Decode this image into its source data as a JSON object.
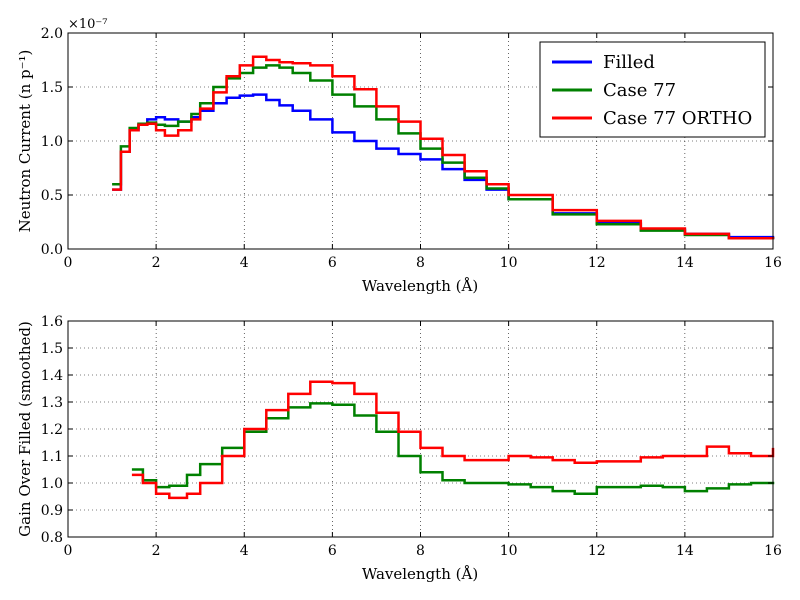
{
  "colors": {
    "blue": "#0000ff",
    "green": "#008000",
    "red": "#ff0000"
  },
  "chart_data": [
    {
      "type": "line",
      "xlabel": "Wavelength (Å)",
      "ylabel": "Neutron Current (n p⁻¹)",
      "y_exponent": "×10⁻⁷",
      "xlim": [
        0,
        16
      ],
      "ylim": [
        0,
        2.0
      ],
      "xticks": [
        0,
        2,
        4,
        6,
        8,
        10,
        12,
        14,
        16
      ],
      "yticks": [
        0.0,
        0.5,
        1.0,
        1.5,
        2.0
      ],
      "grid": true,
      "legend_position": "top-right",
      "series": [
        {
          "name": "Filled",
          "color": "#0000ff",
          "x": [
            1.0,
            1.2,
            1.4,
            1.6,
            1.8,
            2.0,
            2.2,
            2.5,
            2.8,
            3.0,
            3.3,
            3.6,
            3.9,
            4.2,
            4.5,
            4.8,
            5.1,
            5.5,
            6.0,
            6.5,
            7.0,
            7.5,
            8.0,
            8.5,
            9.0,
            9.5,
            10.0,
            11.0,
            12.0,
            13.0,
            14.0,
            15.0,
            16.0
          ],
          "y": [
            0.55,
            0.9,
            1.1,
            1.15,
            1.2,
            1.22,
            1.2,
            1.18,
            1.22,
            1.28,
            1.35,
            1.4,
            1.42,
            1.43,
            1.38,
            1.33,
            1.28,
            1.2,
            1.08,
            1.0,
            0.93,
            0.88,
            0.83,
            0.74,
            0.64,
            0.55,
            0.46,
            0.33,
            0.24,
            0.18,
            0.14,
            0.11,
            0.09
          ]
        },
        {
          "name": "Case 77",
          "color": "#008000",
          "x": [
            1.0,
            1.2,
            1.4,
            1.6,
            1.8,
            2.0,
            2.2,
            2.5,
            2.8,
            3.0,
            3.3,
            3.6,
            3.9,
            4.2,
            4.5,
            4.8,
            5.1,
            5.5,
            6.0,
            6.5,
            7.0,
            7.5,
            8.0,
            8.5,
            9.0,
            9.5,
            10.0,
            11.0,
            12.0,
            13.0,
            14.0,
            15.0,
            16.0
          ],
          "y": [
            0.6,
            0.95,
            1.12,
            1.16,
            1.17,
            1.15,
            1.14,
            1.18,
            1.25,
            1.35,
            1.5,
            1.58,
            1.63,
            1.68,
            1.7,
            1.68,
            1.63,
            1.56,
            1.43,
            1.32,
            1.2,
            1.07,
            0.93,
            0.8,
            0.66,
            0.56,
            0.46,
            0.32,
            0.23,
            0.17,
            0.13,
            0.1,
            0.09
          ]
        },
        {
          "name": "Case 77 ORTHO",
          "color": "#ff0000",
          "x": [
            1.0,
            1.2,
            1.4,
            1.6,
            1.8,
            2.0,
            2.2,
            2.5,
            2.8,
            3.0,
            3.3,
            3.6,
            3.9,
            4.2,
            4.5,
            4.8,
            5.1,
            5.5,
            6.0,
            6.5,
            7.0,
            7.5,
            8.0,
            8.5,
            9.0,
            9.5,
            10.0,
            11.0,
            12.0,
            13.0,
            14.0,
            15.0,
            16.0
          ],
          "y": [
            0.55,
            0.9,
            1.1,
            1.15,
            1.16,
            1.1,
            1.05,
            1.1,
            1.2,
            1.3,
            1.45,
            1.6,
            1.7,
            1.78,
            1.75,
            1.73,
            1.72,
            1.7,
            1.6,
            1.48,
            1.32,
            1.18,
            1.02,
            0.87,
            0.72,
            0.6,
            0.5,
            0.36,
            0.26,
            0.19,
            0.14,
            0.1,
            0.09
          ]
        }
      ]
    },
    {
      "type": "line",
      "xlabel": "Wavelength (Å)",
      "ylabel": "Gain Over Filled (smoothed)",
      "xlim": [
        0,
        16
      ],
      "ylim": [
        0.8,
        1.6
      ],
      "xticks": [
        0,
        2,
        4,
        6,
        8,
        10,
        12,
        14,
        16
      ],
      "yticks": [
        0.8,
        0.9,
        1.0,
        1.1,
        1.2,
        1.3,
        1.4,
        1.5,
        1.6
      ],
      "grid": true,
      "series": [
        {
          "name": "Case 77",
          "color": "#008000",
          "x": [
            1.45,
            1.7,
            2.0,
            2.3,
            2.7,
            3.0,
            3.5,
            4.0,
            4.5,
            5.0,
            5.5,
            6.0,
            6.5,
            7.0,
            7.5,
            8.0,
            8.5,
            9.0,
            10.0,
            10.5,
            11.0,
            11.5,
            12.0,
            13.0,
            13.5,
            14.0,
            14.5,
            15.0,
            15.5,
            16.0
          ],
          "y": [
            1.05,
            1.01,
            0.985,
            0.99,
            1.03,
            1.07,
            1.13,
            1.19,
            1.24,
            1.28,
            1.295,
            1.29,
            1.25,
            1.19,
            1.1,
            1.04,
            1.01,
            1.0,
            0.995,
            0.985,
            0.97,
            0.96,
            0.985,
            0.99,
            0.985,
            0.97,
            0.98,
            0.995,
            1.0,
            1.005
          ]
        },
        {
          "name": "Case 77 ORTHO",
          "color": "#ff0000",
          "x": [
            1.45,
            1.7,
            2.0,
            2.3,
            2.7,
            3.0,
            3.5,
            4.0,
            4.5,
            5.0,
            5.5,
            6.0,
            6.5,
            7.0,
            7.5,
            8.0,
            8.5,
            9.0,
            10.0,
            10.5,
            11.0,
            11.5,
            12.0,
            13.0,
            13.5,
            14.0,
            14.5,
            15.0,
            15.5,
            16.0
          ],
          "y": [
            1.03,
            1.0,
            0.96,
            0.945,
            0.96,
            1.0,
            1.1,
            1.2,
            1.27,
            1.33,
            1.375,
            1.37,
            1.33,
            1.26,
            1.19,
            1.13,
            1.1,
            1.085,
            1.1,
            1.095,
            1.085,
            1.075,
            1.08,
            1.095,
            1.1,
            1.1,
            1.135,
            1.11,
            1.1,
            1.13
          ]
        }
      ]
    }
  ]
}
